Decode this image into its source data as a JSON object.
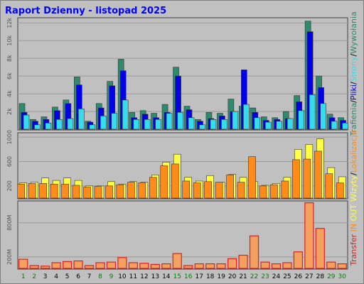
{
  "title": "Raport Dzienny -  listopad 2025",
  "colors": {
    "title": "#0000ff",
    "hits": "#2e8b6e",
    "files": "#0000e8",
    "pages": "#33ddee",
    "visits": "#ffff44",
    "sites": "#ff8c1a",
    "kbytes": "#e02020",
    "kbytes_fill": "#f4a060",
    "weekday": "#006000",
    "weekend": "#008000"
  },
  "chart_data": [
    {
      "type": "bar",
      "x": [
        "1",
        "2",
        "3",
        "4",
        "5",
        "6",
        "7",
        "8",
        "9",
        "10",
        "11",
        "12",
        "13",
        "14",
        "15",
        "16",
        "17",
        "18",
        "19",
        "20",
        "21",
        "22",
        "23",
        "24",
        "25",
        "26",
        "27",
        "28",
        "29",
        "30"
      ],
      "yticks": [
        "2k",
        "4k",
        "6k",
        "8k",
        "10k",
        "12k"
      ],
      "ylim": [
        0,
        12500
      ],
      "side_label_parts": [
        {
          "text": "Trafienia",
          "color": "#2e8b6e"
        },
        {
          "text": "/",
          "color": "#000000"
        },
        {
          "text": "Pliki",
          "color": "#0000e8"
        },
        {
          "text": "/",
          "color": "#000000"
        },
        {
          "text": "Strony",
          "color": "#33ddee"
        },
        {
          "text": "/",
          "color": "#000000"
        },
        {
          "text": "Wywołania",
          "color": "#2e8b6e"
        }
      ],
      "series": [
        {
          "name": "Trafienia",
          "color": "#2e8b6e",
          "values": [
            2900,
            1100,
            1400,
            2500,
            3300,
            5900,
            900,
            2900,
            5400,
            7900,
            1900,
            2100,
            1800,
            2800,
            7000,
            2600,
            1100,
            1900,
            1800,
            3400,
            2600,
            2400,
            1400,
            1300,
            2000,
            3800,
            12200,
            6000,
            1700,
            1300
          ]
        },
        {
          "name": "Pliki",
          "color": "#0000e8",
          "values": [
            1900,
            900,
            1100,
            2100,
            2900,
            5000,
            800,
            2400,
            4900,
            6600,
            1300,
            1700,
            1300,
            1900,
            6000,
            2200,
            900,
            1200,
            1500,
            2000,
            6700,
            1900,
            1000,
            1100,
            1200,
            3100,
            11000,
            4700,
            1300,
            1000
          ]
        },
        {
          "name": "Strony",
          "color": "#33ddee",
          "values": [
            1600,
            500,
            700,
            1100,
            1200,
            2300,
            500,
            1500,
            1800,
            3300,
            1100,
            1100,
            1100,
            1800,
            1900,
            1300,
            500,
            1100,
            1100,
            2000,
            2800,
            1300,
            800,
            900,
            1200,
            2100,
            3900,
            2900,
            900,
            700
          ]
        }
      ]
    },
    {
      "type": "bar",
      "x": [
        "1",
        "2",
        "3",
        "4",
        "5",
        "6",
        "7",
        "8",
        "9",
        "10",
        "11",
        "12",
        "13",
        "14",
        "15",
        "16",
        "17",
        "18",
        "19",
        "20",
        "21",
        "22",
        "23",
        "24",
        "25",
        "26",
        "27",
        "28",
        "29",
        "30"
      ],
      "yticks": [
        "200",
        "600",
        "1000"
      ],
      "ylim": [
        0,
        1060
      ],
      "side_label_parts": [
        {
          "text": "Wizyty",
          "color": "#ffff44"
        },
        {
          "text": "/",
          "color": "#000000"
        },
        {
          "text": "Lokalizacje",
          "color": "#ff8c1a"
        }
      ],
      "series": [
        {
          "name": "Wizyty",
          "color": "#ffff44",
          "values": [
            250,
            260,
            330,
            290,
            330,
            290,
            200,
            200,
            270,
            230,
            270,
            260,
            380,
            590,
            720,
            340,
            280,
            370,
            260,
            390,
            340,
            270,
            210,
            240,
            340,
            800,
            880,
            970,
            500,
            350
          ]
        },
        {
          "name": "Lokalizacje",
          "color": "#ff8c1a",
          "values": [
            230,
            240,
            240,
            230,
            230,
            210,
            180,
            190,
            200,
            220,
            260,
            250,
            340,
            530,
            560,
            280,
            250,
            270,
            260,
            380,
            260,
            680,
            200,
            220,
            280,
            630,
            640,
            770,
            400,
            250
          ]
        }
      ]
    },
    {
      "type": "bar",
      "x": [
        "1",
        "2",
        "3",
        "4",
        "5",
        "6",
        "7",
        "8",
        "9",
        "10",
        "11",
        "12",
        "13",
        "14",
        "15",
        "16",
        "17",
        "18",
        "19",
        "20",
        "21",
        "22",
        "23",
        "24",
        "25",
        "26",
        "27",
        "28",
        "29",
        "30"
      ],
      "yticks": [
        "200M",
        "800M"
      ],
      "ylim": [
        0,
        1170
      ],
      "side_label_parts": [
        {
          "text": "Transfer",
          "color": "#e02020"
        },
        {
          "text": "IN",
          "color": "#ff8c1a"
        },
        {
          "text": "OUT",
          "color": "#ffff44"
        }
      ],
      "series": [
        {
          "name": "Transfer",
          "color": "#e02020",
          "values": [
            160,
            50,
            40,
            100,
            120,
            130,
            50,
            100,
            110,
            190,
            100,
            90,
            70,
            80,
            260,
            50,
            80,
            80,
            80,
            170,
            230,
            570,
            110,
            80,
            100,
            290,
            1150,
            700,
            110,
            80
          ]
        }
      ]
    }
  ]
}
